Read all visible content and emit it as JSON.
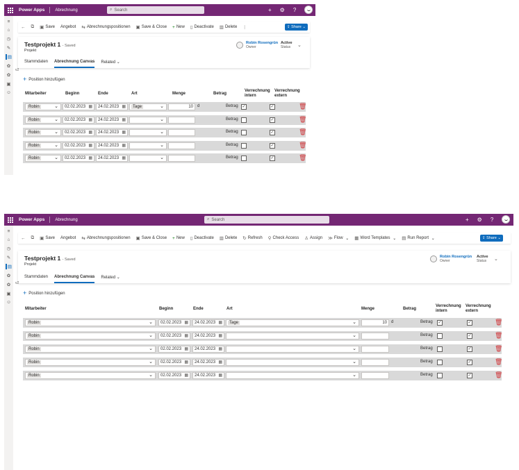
{
  "topbar": {
    "app_name": "Power Apps",
    "environment": "Abrechnung",
    "search_placeholder": "Search",
    "icons": [
      "plus-icon",
      "gear-icon",
      "help-icon",
      "avatar"
    ]
  },
  "nav_icons": [
    "hamburger-icon",
    "home-icon",
    "recent-icon",
    "pin-icon",
    "entity-icon",
    "gear-icon",
    "gear-icon",
    "book-icon",
    "person-icon"
  ],
  "command_bar_1": [
    {
      "name": "back",
      "label": ""
    },
    {
      "name": "popout",
      "label": ""
    },
    {
      "name": "save",
      "label": "Save"
    },
    {
      "name": "angebot",
      "label": "Angebot"
    },
    {
      "name": "abrechnungspositionen",
      "label": "Abrechnungspositionen"
    },
    {
      "name": "save-close",
      "label": "Save & Close"
    },
    {
      "name": "new",
      "label": "New"
    },
    {
      "name": "deactivate",
      "label": "Deactivate"
    },
    {
      "name": "delete",
      "label": "Delete"
    },
    {
      "name": "more",
      "label": "⋮"
    }
  ],
  "command_bar_2": [
    {
      "name": "back",
      "label": ""
    },
    {
      "name": "popout",
      "label": ""
    },
    {
      "name": "save",
      "label": "Save"
    },
    {
      "name": "angebot",
      "label": "Angebot"
    },
    {
      "name": "abrechnungspositionen",
      "label": "Abrechnungspositionen"
    },
    {
      "name": "save-close",
      "label": "Save & Close"
    },
    {
      "name": "new",
      "label": "New"
    },
    {
      "name": "deactivate",
      "label": "Deactivate"
    },
    {
      "name": "delete",
      "label": "Delete"
    },
    {
      "name": "refresh",
      "label": "Refresh"
    },
    {
      "name": "check-access",
      "label": "Check Access"
    },
    {
      "name": "assign",
      "label": "Assign"
    },
    {
      "name": "flow",
      "label": "Flow"
    },
    {
      "name": "word-templates",
      "label": "Word Templates"
    },
    {
      "name": "run-report",
      "label": "Run Report"
    }
  ],
  "share_label": "Share",
  "record": {
    "title": "Testprojekt 1",
    "saved": "- Saved",
    "type": "Projekt",
    "owner_name": "Robin Rosengrün",
    "owner_label": "Owner",
    "status_value": "Active",
    "status_label": "Status"
  },
  "tabs": [
    "Stammdaten",
    "Abrechnung Canvas",
    "Related"
  ],
  "selected_tab": 1,
  "version_tag": "v2",
  "canvas": {
    "add_position": "Position hinzufügen",
    "headers": {
      "mitarbeiter": "Mitarbeiter",
      "beginn": "Beginn",
      "ende": "Ende",
      "art": "Art",
      "menge": "Menge",
      "betrag": "Betrag",
      "verrechnung_intern": "Verrechnung intern",
      "verrechnung_extern": "Verrechnung extern"
    },
    "rows": [
      {
        "mitarbeiter": "Robin",
        "beginn": "02.02.2023",
        "ende": "24.02.2023",
        "art": "Tage",
        "menge": "10",
        "unit": "d",
        "betrag": "Betrag",
        "intern": true,
        "extern": true
      },
      {
        "mitarbeiter": "Robin",
        "beginn": "02.02.2023",
        "ende": "24.02.2023",
        "art": "",
        "menge": "",
        "unit": "",
        "betrag": "Betrag",
        "intern": false,
        "extern": true
      },
      {
        "mitarbeiter": "Robin",
        "beginn": "02.02.2023",
        "ende": "24.02.2023",
        "art": "",
        "menge": "",
        "unit": "",
        "betrag": "Betrag",
        "intern": false,
        "extern": true
      },
      {
        "mitarbeiter": "Robin",
        "beginn": "02.02.2023",
        "ende": "24.02.2023",
        "art": "",
        "menge": "",
        "unit": "",
        "betrag": "Betrag",
        "intern": false,
        "extern": true
      },
      {
        "mitarbeiter": "Robin",
        "beginn": "02.02.2023",
        "ende": "24.02.2023",
        "art": "",
        "menge": "",
        "unit": "",
        "betrag": "Betrag",
        "intern": false,
        "extern": true
      }
    ]
  },
  "colors": {
    "topbar": "#742774",
    "accent": "#0f6cbd",
    "row_bg": "#d9d9d9",
    "delete_icon": "#d13438"
  }
}
